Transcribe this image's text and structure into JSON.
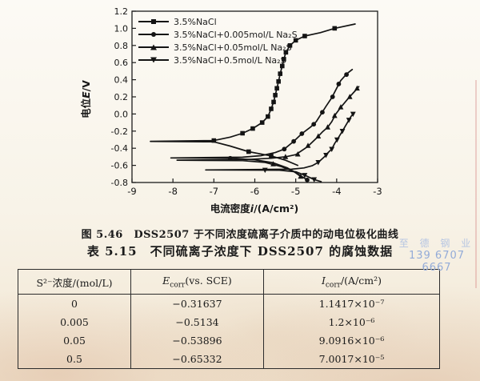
{
  "page": {
    "caption": "图 5.46　DSS2507 于不同浓度硫离子介质中的动电位极化曲线",
    "table_title": "表 5.15　不同硫离子浓度下 DSS2507 的腐蚀数据",
    "watermark": {
      "line1": "至 德 钢 业",
      "line2": "139 6707 6667"
    }
  },
  "chart_data": {
    "type": "line",
    "title": "",
    "xlabel_parts": [
      "电流密度",
      "i",
      "/(A/cm²)"
    ],
    "ylabel_parts": [
      "电位",
      "E",
      "/V"
    ],
    "xlim": [
      -9,
      -3
    ],
    "ylim": [
      -0.8,
      1.2
    ],
    "xticks": [
      -9,
      -8,
      -7,
      -6,
      -5,
      -4,
      -3
    ],
    "yticks": [
      1.2,
      1.0,
      0.8,
      0.6,
      0.4,
      0.2,
      0.0,
      -0.2,
      -0.4,
      -0.6,
      -0.8
    ],
    "grid": false,
    "legend_position": "top-left",
    "line_color": "#141414",
    "series": [
      {
        "name": "3.5%NaCl",
        "marker": "square",
        "e_corr": -0.31637,
        "points": [
          [
            -4.95,
            -0.6
          ],
          [
            -5.25,
            -0.54
          ],
          [
            -5.6,
            -0.49
          ],
          [
            -6.15,
            -0.44
          ],
          [
            -6.6,
            -0.375
          ],
          [
            -7.0,
            -0.325
          ],
          [
            -8.55,
            -0.32
          ],
          [
            -7.0,
            -0.31
          ],
          [
            -6.6,
            -0.27
          ],
          [
            -6.3,
            -0.225
          ],
          [
            -6.05,
            -0.17
          ],
          [
            -5.82,
            -0.1
          ],
          [
            -5.68,
            -0.03
          ],
          [
            -5.6,
            0.06
          ],
          [
            -5.54,
            0.14
          ],
          [
            -5.5,
            0.22
          ],
          [
            -5.46,
            0.3
          ],
          [
            -5.42,
            0.38
          ],
          [
            -5.38,
            0.47
          ],
          [
            -5.33,
            0.56
          ],
          [
            -5.29,
            0.64
          ],
          [
            -5.24,
            0.72
          ],
          [
            -5.14,
            0.8
          ],
          [
            -5.0,
            0.86
          ],
          [
            -4.78,
            0.91
          ],
          [
            -4.4,
            0.95
          ],
          [
            -4.05,
            1.0
          ],
          [
            -3.55,
            1.05
          ]
        ],
        "marker_points": [
          [
            -6.15,
            -0.44
          ],
          [
            -5.6,
            -0.49
          ],
          [
            -7.0,
            -0.31
          ],
          [
            -6.3,
            -0.225
          ],
          [
            -6.05,
            -0.17
          ],
          [
            -5.82,
            -0.1
          ],
          [
            -5.68,
            -0.03
          ],
          [
            -5.6,
            0.06
          ],
          [
            -5.54,
            0.14
          ],
          [
            -5.5,
            0.22
          ],
          [
            -5.46,
            0.3
          ],
          [
            -5.42,
            0.38
          ],
          [
            -5.38,
            0.47
          ],
          [
            -5.33,
            0.56
          ],
          [
            -5.29,
            0.64
          ],
          [
            -5.24,
            0.72
          ],
          [
            -5.14,
            0.8
          ],
          [
            -5.0,
            0.86
          ],
          [
            -4.78,
            0.91
          ],
          [
            -4.05,
            1.0
          ]
        ]
      },
      {
        "name": "3.5%NaCl+0.005mol/L Na₂S",
        "marker": "circle",
        "e_corr": -0.5134,
        "points": [
          [
            -4.72,
            -0.77
          ],
          [
            -4.95,
            -0.7
          ],
          [
            -5.2,
            -0.63
          ],
          [
            -5.55,
            -0.57
          ],
          [
            -6.0,
            -0.535
          ],
          [
            -6.6,
            -0.517
          ],
          [
            -8.05,
            -0.513
          ],
          [
            -6.3,
            -0.505
          ],
          [
            -5.85,
            -0.487
          ],
          [
            -5.5,
            -0.45
          ],
          [
            -5.28,
            -0.41
          ],
          [
            -5.05,
            -0.32
          ],
          [
            -4.85,
            -0.23
          ],
          [
            -4.63,
            -0.15
          ],
          [
            -4.5,
            -0.09
          ],
          [
            -4.38,
            0.0
          ],
          [
            -4.26,
            0.09
          ],
          [
            -4.12,
            0.19
          ],
          [
            -4.0,
            0.3
          ],
          [
            -3.9,
            0.39
          ],
          [
            -3.75,
            0.47
          ],
          [
            -3.62,
            0.52
          ]
        ],
        "marker_points": [
          [
            -6.6,
            -0.517
          ],
          [
            -4.72,
            -0.77
          ],
          [
            -5.28,
            -0.41
          ],
          [
            -5.05,
            -0.32
          ],
          [
            -4.85,
            -0.23
          ],
          [
            -4.56,
            -0.12
          ],
          [
            -4.35,
            0.02
          ],
          [
            -4.1,
            0.2
          ],
          [
            -3.95,
            0.35
          ],
          [
            -3.76,
            0.46
          ]
        ]
      },
      {
        "name": "3.5%NaCl+0.05mol/L Na₂S",
        "marker": "triangle-up",
        "e_corr": -0.53896,
        "points": [
          [
            -4.88,
            -0.73
          ],
          [
            -5.05,
            -0.67
          ],
          [
            -5.35,
            -0.615
          ],
          [
            -5.75,
            -0.565
          ],
          [
            -6.3,
            -0.545
          ],
          [
            -7.9,
            -0.539
          ],
          [
            -6.2,
            -0.532
          ],
          [
            -5.6,
            -0.517
          ],
          [
            -5.25,
            -0.5
          ],
          [
            -5.0,
            -0.475
          ],
          [
            -4.72,
            -0.385
          ],
          [
            -4.5,
            -0.285
          ],
          [
            -4.35,
            -0.21
          ],
          [
            -4.22,
            -0.155
          ],
          [
            -4.12,
            -0.09
          ],
          [
            -4.02,
            0.0
          ],
          [
            -3.88,
            0.09
          ],
          [
            -3.72,
            0.18
          ],
          [
            -3.55,
            0.27
          ],
          [
            -3.46,
            0.32
          ]
        ],
        "marker_points": [
          [
            -5.55,
            -0.585
          ],
          [
            -4.88,
            -0.73
          ],
          [
            -5.25,
            -0.5
          ],
          [
            -4.95,
            -0.47
          ],
          [
            -4.7,
            -0.37
          ],
          [
            -4.45,
            -0.26
          ],
          [
            -4.22,
            -0.155
          ],
          [
            -4.05,
            -0.02
          ],
          [
            -3.9,
            0.08
          ],
          [
            -3.68,
            0.2
          ],
          [
            -3.5,
            0.3
          ]
        ]
      },
      {
        "name": "3.5%NaCl+0.5mol/L Na₂S",
        "marker": "triangle-down",
        "e_corr": -0.65332,
        "points": [
          [
            -4.38,
            -0.79
          ],
          [
            -4.55,
            -0.765
          ],
          [
            -4.78,
            -0.715
          ],
          [
            -5.0,
            -0.675
          ],
          [
            -5.4,
            -0.657
          ],
          [
            -7.2,
            -0.653
          ],
          [
            -5.1,
            -0.645
          ],
          [
            -4.8,
            -0.63
          ],
          [
            -4.6,
            -0.605
          ],
          [
            -4.45,
            -0.565
          ],
          [
            -4.3,
            -0.5
          ],
          [
            -4.22,
            -0.455
          ],
          [
            -4.12,
            -0.41
          ],
          [
            -4.05,
            -0.345
          ],
          [
            -3.97,
            -0.285
          ],
          [
            -3.86,
            -0.2
          ],
          [
            -3.73,
            -0.095
          ],
          [
            -3.65,
            -0.03
          ],
          [
            -3.58,
            0.01
          ]
        ],
        "marker_points": [
          [
            -5.75,
            -0.654
          ],
          [
            -4.55,
            -0.765
          ],
          [
            -4.78,
            -0.715
          ],
          [
            -4.45,
            -0.565
          ],
          [
            -4.26,
            -0.48
          ],
          [
            -4.12,
            -0.41
          ],
          [
            -3.99,
            -0.3
          ],
          [
            -3.86,
            -0.2
          ],
          [
            -3.7,
            -0.07
          ],
          [
            -3.6,
            0.0
          ]
        ]
      }
    ]
  },
  "table": {
    "headers": {
      "col1": "S²⁻浓度/(mol/L)",
      "col2": {
        "sym": "E",
        "sub": "corr",
        "rest": "(vs. SCE)"
      },
      "col3": {
        "sym": "I",
        "sub": "corr",
        "rest": "/(A/cm²)"
      }
    },
    "rows": [
      {
        "conc": "0",
        "ecorr": "−0.31637",
        "icorr": "1.1417×10⁻⁷"
      },
      {
        "conc": "0.005",
        "ecorr": "−0.5134",
        "icorr": "1.2×10⁻⁶"
      },
      {
        "conc": "0.05",
        "ecorr": "−0.53896",
        "icorr": "9.0916×10⁻⁶"
      },
      {
        "conc": "0.5",
        "ecorr": "−0.65332",
        "icorr": "7.0017×10⁻⁵"
      }
    ]
  }
}
